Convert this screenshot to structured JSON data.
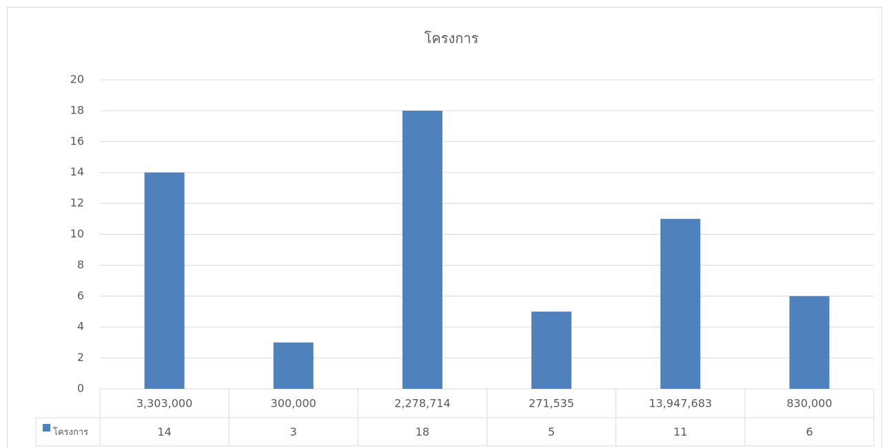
{
  "chart_data": {
    "type": "bar",
    "title": "โครงการ",
    "categories": [
      "3,303,000",
      "300,000",
      "2,278,714",
      "271,535",
      "13,947,683",
      "830,000"
    ],
    "series": [
      {
        "name": "โครงการ",
        "color": "#4f81bd",
        "values": [
          14,
          3,
          18,
          5,
          11,
          6
        ]
      }
    ],
    "ylim": [
      0,
      20
    ],
    "yticks": [
      0,
      2,
      4,
      6,
      8,
      10,
      12,
      14,
      16,
      18,
      20
    ],
    "grid": true
  }
}
